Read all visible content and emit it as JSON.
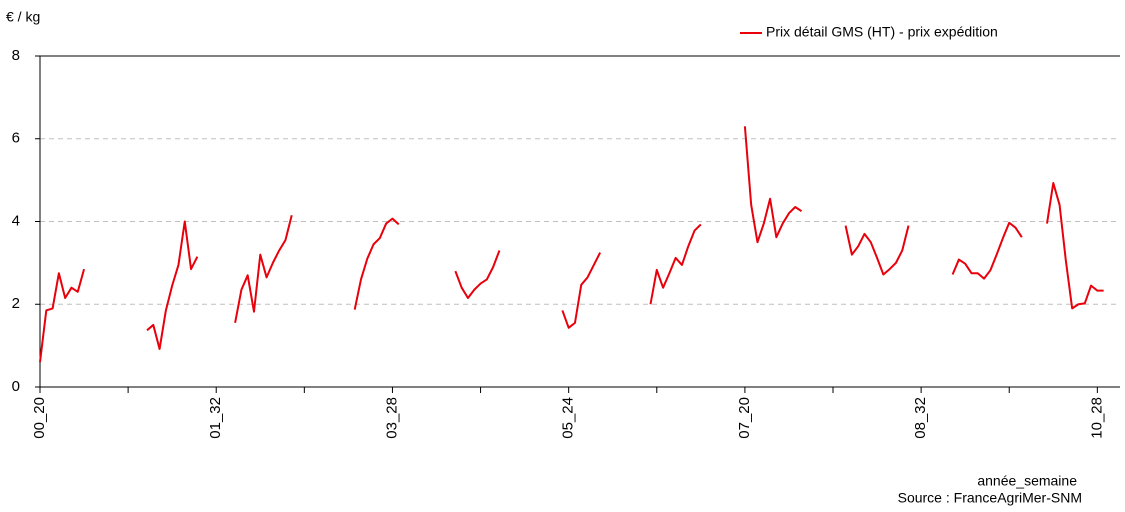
{
  "chart_data": {
    "type": "line",
    "y_label": "€ / kg",
    "x_label": "année_semaine",
    "source": "Source : FranceAgriMer-SNM",
    "categories": [
      "00_20",
      null,
      null,
      null,
      null,
      null,
      null,
      null,
      null,
      null,
      null,
      null,
      null,
      null,
      null,
      null,
      null,
      null,
      null,
      null,
      null,
      null,
      null,
      null,
      null,
      null,
      null,
      null,
      "01_32",
      null,
      null,
      null,
      null,
      null,
      null,
      null,
      null,
      null,
      null,
      null,
      null,
      null,
      null,
      null,
      null,
      null,
      null,
      null,
      null,
      null,
      null,
      null,
      null,
      null,
      null,
      null,
      "03_28",
      null,
      null,
      null,
      null,
      null,
      null,
      null,
      null,
      null,
      null,
      null,
      null,
      null,
      null,
      null,
      null,
      null,
      null,
      null,
      null,
      null,
      null,
      null,
      null,
      null,
      null,
      null,
      "05_24",
      null,
      null,
      null,
      null,
      null,
      null,
      null,
      null,
      null,
      null,
      null,
      null,
      null,
      null,
      null,
      null,
      null,
      null,
      null,
      null,
      null,
      null,
      null,
      null,
      null,
      null,
      null,
      "07_20",
      null,
      null,
      null,
      null,
      null,
      null,
      null,
      null,
      null,
      null,
      null,
      null,
      null,
      null,
      null,
      null,
      null,
      null,
      null,
      null,
      null,
      null,
      null,
      null,
      null,
      null,
      null,
      "08_32",
      null,
      null,
      null,
      null,
      null,
      null,
      null,
      null,
      null,
      null,
      null,
      null,
      null,
      null,
      null,
      null,
      null,
      null,
      null,
      null,
      null,
      null,
      null,
      null,
      null,
      null,
      null,
      "10_28",
      null,
      null
    ],
    "series": [
      {
        "name": "Prix détail GMS (HT) - prix expédition",
        "color": "#e8000b",
        "values": [
          0.6,
          1.85,
          1.9,
          2.75,
          2.15,
          2.4,
          2.3,
          2.85,
          null,
          null,
          null,
          null,
          null,
          null,
          null,
          null,
          null,
          1.37,
          1.5,
          0.92,
          1.85,
          2.45,
          2.95,
          4.0,
          2.85,
          3.15,
          null,
          null,
          null,
          null,
          null,
          1.55,
          2.35,
          2.7,
          1.82,
          3.2,
          2.65,
          3.0,
          3.3,
          3.55,
          4.15,
          null,
          null,
          null,
          null,
          null,
          null,
          null,
          null,
          null,
          1.87,
          2.6,
          3.1,
          3.45,
          3.6,
          3.95,
          4.07,
          3.93,
          null,
          null,
          null,
          null,
          null,
          null,
          null,
          null,
          2.8,
          2.4,
          2.15,
          2.35,
          2.5,
          2.6,
          2.9,
          3.3,
          null,
          null,
          null,
          null,
          null,
          null,
          null,
          null,
          null,
          1.85,
          1.43,
          1.55,
          2.47,
          2.65,
          2.95,
          3.25,
          null,
          null,
          null,
          null,
          null,
          null,
          null,
          2.0,
          2.83,
          2.4,
          2.75,
          3.12,
          2.95,
          3.4,
          3.78,
          3.93,
          null,
          null,
          null,
          null,
          null,
          null,
          6.3,
          4.4,
          3.5,
          3.95,
          4.55,
          3.62,
          3.95,
          4.2,
          4.35,
          4.25,
          null,
          null,
          null,
          null,
          null,
          null,
          3.9,
          3.2,
          3.4,
          3.7,
          3.5,
          3.12,
          2.72,
          2.85,
          3.0,
          3.3,
          3.9,
          null,
          null,
          null,
          null,
          null,
          null,
          2.72,
          3.08,
          2.98,
          2.75,
          2.75,
          2.62,
          2.82,
          3.2,
          3.6,
          3.97,
          3.85,
          3.62,
          null,
          null,
          null,
          3.95,
          4.93,
          4.4,
          3.05,
          1.9,
          2.0,
          2.02,
          2.45,
          2.33,
          2.33,
          null
        ]
      }
    ],
    "ylim": [
      0,
      8
    ],
    "yticks": [
      0,
      2,
      4,
      6,
      8
    ],
    "grid": true,
    "legend": "top-right"
  }
}
